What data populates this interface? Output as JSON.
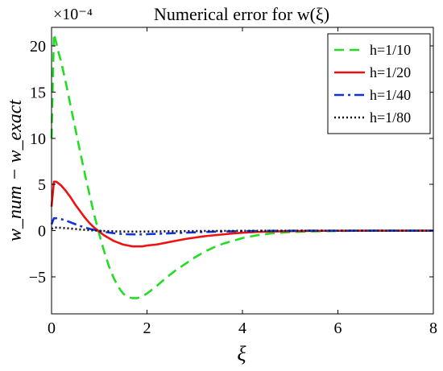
{
  "chart_data": {
    "type": "line",
    "title": "Numerical error for w(ξ)",
    "xlabel": "ξ",
    "ylabel": "w_num − w_exact",
    "y_scale_label": "×10⁻⁴",
    "xlim": [
      0,
      8
    ],
    "ylim": [
      -9,
      22
    ],
    "xticks": [
      0,
      2,
      4,
      6,
      8
    ],
    "xtick_labels": [
      "0",
      "2",
      "4",
      "6",
      "8"
    ],
    "yticks": [
      -5,
      0,
      5,
      10,
      15,
      20
    ],
    "ytick_labels": [
      "−5",
      "0",
      "5",
      "10",
      "15",
      "20"
    ],
    "grid": false,
    "legend_position": "top-right",
    "x": [
      0.0,
      0.05,
      0.1,
      0.15,
      0.2,
      0.3,
      0.4,
      0.5,
      0.6,
      0.7,
      0.8,
      0.9,
      1.0,
      1.1,
      1.2,
      1.3,
      1.4,
      1.5,
      1.6,
      1.7,
      1.8,
      1.9,
      2.0,
      2.2,
      2.4,
      2.6,
      2.8,
      3.0,
      3.2,
      3.4,
      3.6,
      3.8,
      4.0,
      4.3,
      4.6,
      5.0,
      5.5,
      6.0,
      6.5,
      7.0,
      7.5,
      8.0
    ],
    "series": [
      {
        "name": "h=1/10",
        "color": "#22dd22",
        "dash": "dashed",
        "values": [
          10.0,
          21.3,
          20.3,
          19.2,
          18.3,
          16.0,
          13.5,
          11.0,
          8.5,
          6.1,
          3.8,
          1.6,
          -0.4,
          -2.2,
          -3.8,
          -5.1,
          -6.1,
          -6.8,
          -7.2,
          -7.3,
          -7.3,
          -7.1,
          -6.8,
          -6.0,
          -5.1,
          -4.3,
          -3.6,
          -2.9,
          -2.3,
          -1.8,
          -1.4,
          -1.1,
          -0.8,
          -0.5,
          -0.3,
          -0.15,
          -0.07,
          -0.03,
          -0.01,
          0.0,
          0.0,
          0.0
        ]
      },
      {
        "name": "h=1/20",
        "color": "#ee1111",
        "dash": "solid",
        "values": [
          2.6,
          5.3,
          5.3,
          5.1,
          4.9,
          4.3,
          3.6,
          2.8,
          2.1,
          1.4,
          0.8,
          0.3,
          -0.1,
          -0.5,
          -0.8,
          -1.1,
          -1.3,
          -1.5,
          -1.6,
          -1.7,
          -1.7,
          -1.7,
          -1.6,
          -1.5,
          -1.3,
          -1.1,
          -0.9,
          -0.75,
          -0.6,
          -0.5,
          -0.4,
          -0.3,
          -0.22,
          -0.14,
          -0.09,
          -0.05,
          -0.02,
          -0.01,
          0.0,
          0.0,
          0.0,
          0.0
        ]
      },
      {
        "name": "h=1/40",
        "color": "#1133dd",
        "dash": "dashdot",
        "values": [
          0.7,
          1.35,
          1.35,
          1.3,
          1.25,
          1.1,
          0.9,
          0.7,
          0.5,
          0.35,
          0.2,
          0.08,
          -0.03,
          -0.12,
          -0.2,
          -0.27,
          -0.32,
          -0.36,
          -0.39,
          -0.4,
          -0.4,
          -0.4,
          -0.38,
          -0.34,
          -0.3,
          -0.26,
          -0.22,
          -0.18,
          -0.14,
          -0.11,
          -0.09,
          -0.07,
          -0.05,
          -0.03,
          -0.02,
          -0.01,
          0.0,
          0.0,
          0.0,
          0.0,
          0.0,
          0.0
        ]
      },
      {
        "name": "h=1/80",
        "color": "#111111",
        "dash": "dotted",
        "values": [
          0.2,
          0.35,
          0.34,
          0.33,
          0.31,
          0.27,
          0.23,
          0.18,
          0.13,
          0.09,
          0.05,
          0.02,
          -0.01,
          -0.03,
          -0.05,
          -0.07,
          -0.08,
          -0.09,
          -0.1,
          -0.1,
          -0.1,
          -0.1,
          -0.09,
          -0.08,
          -0.07,
          -0.06,
          -0.05,
          -0.04,
          -0.03,
          -0.03,
          -0.02,
          -0.02,
          -0.01,
          -0.01,
          0.0,
          0.0,
          0.0,
          0.0,
          0.0,
          0.0,
          0.0,
          0.0
        ]
      }
    ]
  }
}
